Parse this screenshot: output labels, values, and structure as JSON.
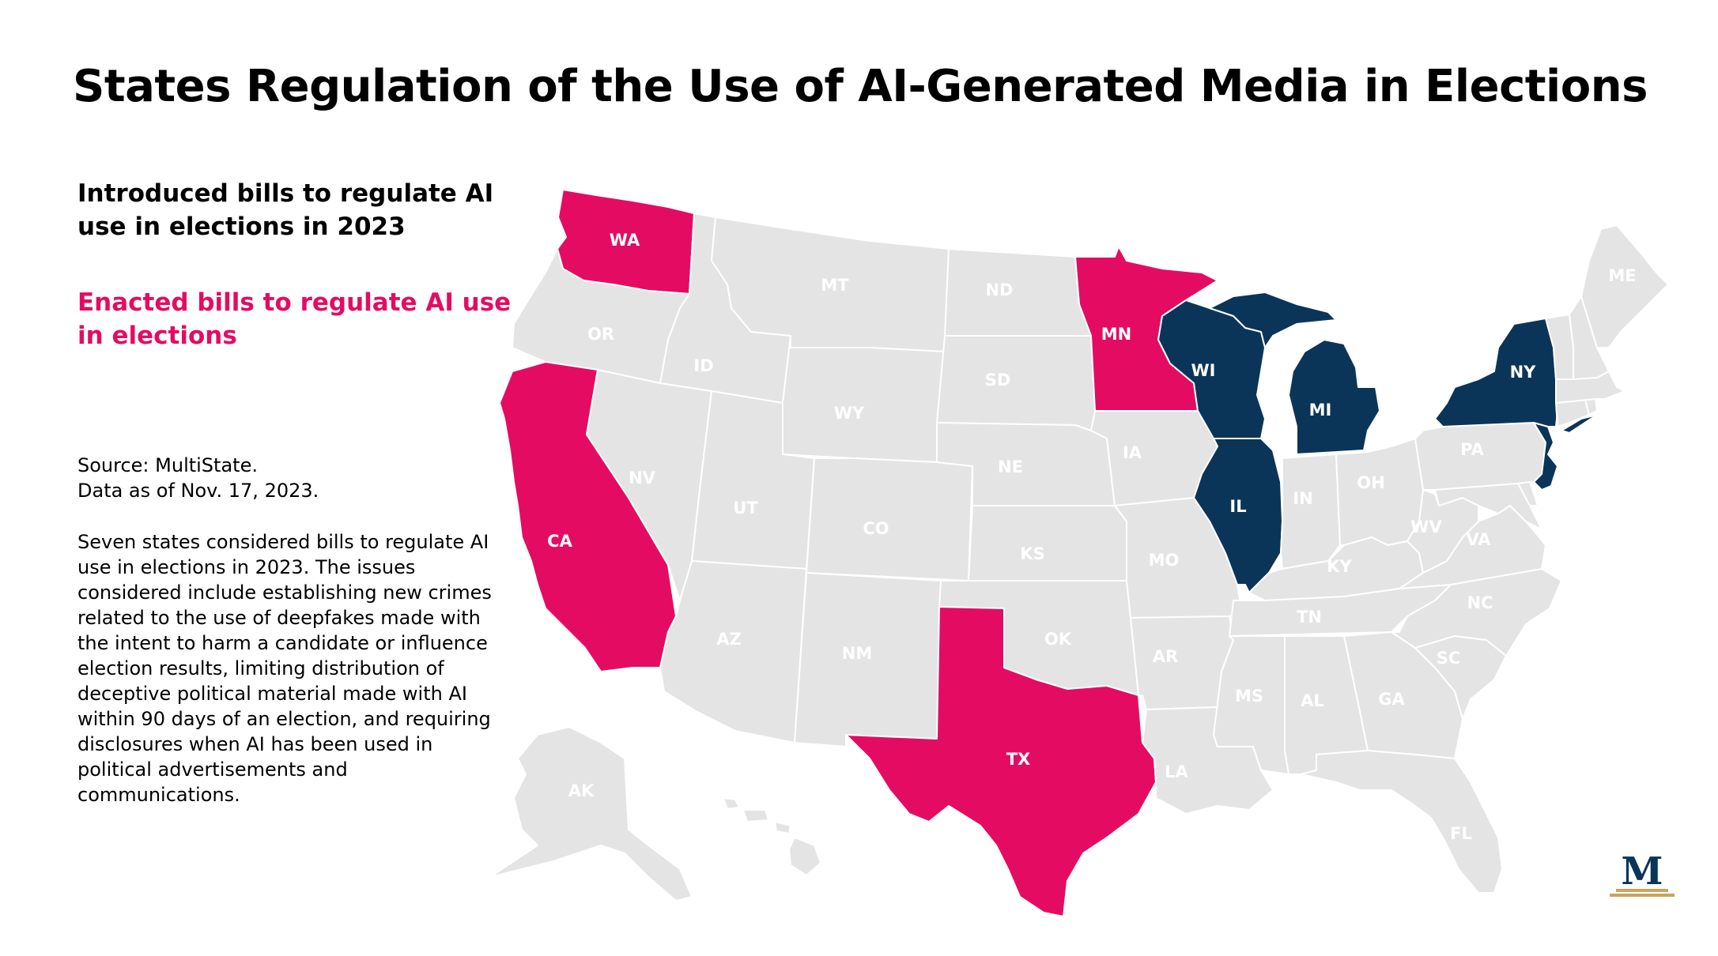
{
  "title": "States Regulation of the Use of AI-Generated Media in Elections",
  "legend": {
    "introduced_label": "Introduced bills to regulate AI use in elections in 2023",
    "enacted_label": "Enacted bills to regulate AI use in elections"
  },
  "source_lines": [
    "Source: MultiState.",
    "Data as of Nov. 17, 2023."
  ],
  "description": "Seven states considered bills to regulate AI use in elections in 2023. The issues considered include establishing new crimes related to the use of deepfakes made with the intent to harm a candidate or influence election results, limiting distribution of deceptive political material made with AI within 90 days of an election, and requiring disclosures when AI has been used in political advertisements and communications.",
  "colors": {
    "introduced": "#0b3558",
    "enacted": "#e40c62",
    "no_action": "#e4e4e4",
    "state_border": "#ffffff",
    "label_on_light": "#ffffff",
    "label_on_dark": "#ffffff",
    "logo_letter": "#0b3558",
    "logo_gold": "#c9a45b"
  },
  "states": {
    "WA": {
      "status": "enacted"
    },
    "CA": {
      "status": "enacted"
    },
    "MN": {
      "status": "enacted"
    },
    "TX": {
      "status": "enacted"
    },
    "WI": {
      "status": "introduced"
    },
    "MI": {
      "status": "introduced"
    },
    "IL": {
      "status": "introduced"
    },
    "NY": {
      "status": "introduced"
    },
    "NJ": {
      "status": "introduced"
    },
    "OR": {
      "status": "none"
    },
    "ID": {
      "status": "none"
    },
    "MT": {
      "status": "none"
    },
    "ND": {
      "status": "none"
    },
    "SD": {
      "status": "none"
    },
    "WY": {
      "status": "none"
    },
    "NV": {
      "status": "none"
    },
    "UT": {
      "status": "none"
    },
    "CO": {
      "status": "none"
    },
    "NE": {
      "status": "none"
    },
    "KS": {
      "status": "none"
    },
    "AZ": {
      "status": "none"
    },
    "NM": {
      "status": "none"
    },
    "OK": {
      "status": "none"
    },
    "IA": {
      "status": "none"
    },
    "MO": {
      "status": "none"
    },
    "AR": {
      "status": "none"
    },
    "LA": {
      "status": "none"
    },
    "MS": {
      "status": "none"
    },
    "AL": {
      "status": "none"
    },
    "GA": {
      "status": "none"
    },
    "FL": {
      "status": "none"
    },
    "SC": {
      "status": "none"
    },
    "NC": {
      "status": "none"
    },
    "TN": {
      "status": "none"
    },
    "KY": {
      "status": "none"
    },
    "IN": {
      "status": "none"
    },
    "OH": {
      "status": "none"
    },
    "WV": {
      "status": "none"
    },
    "VA": {
      "status": "none"
    },
    "PA": {
      "status": "none"
    },
    "MD": {
      "status": "none"
    },
    "DE": {
      "status": "none"
    },
    "CT": {
      "status": "none"
    },
    "RI": {
      "status": "none"
    },
    "MA": {
      "status": "none"
    },
    "VT": {
      "status": "none"
    },
    "NH": {
      "status": "none"
    },
    "ME": {
      "status": "none"
    },
    "AK": {
      "status": "none"
    },
    "HI": {
      "status": "none"
    }
  },
  "logo": {
    "letter": "M",
    "icon": "multistate-logo"
  }
}
